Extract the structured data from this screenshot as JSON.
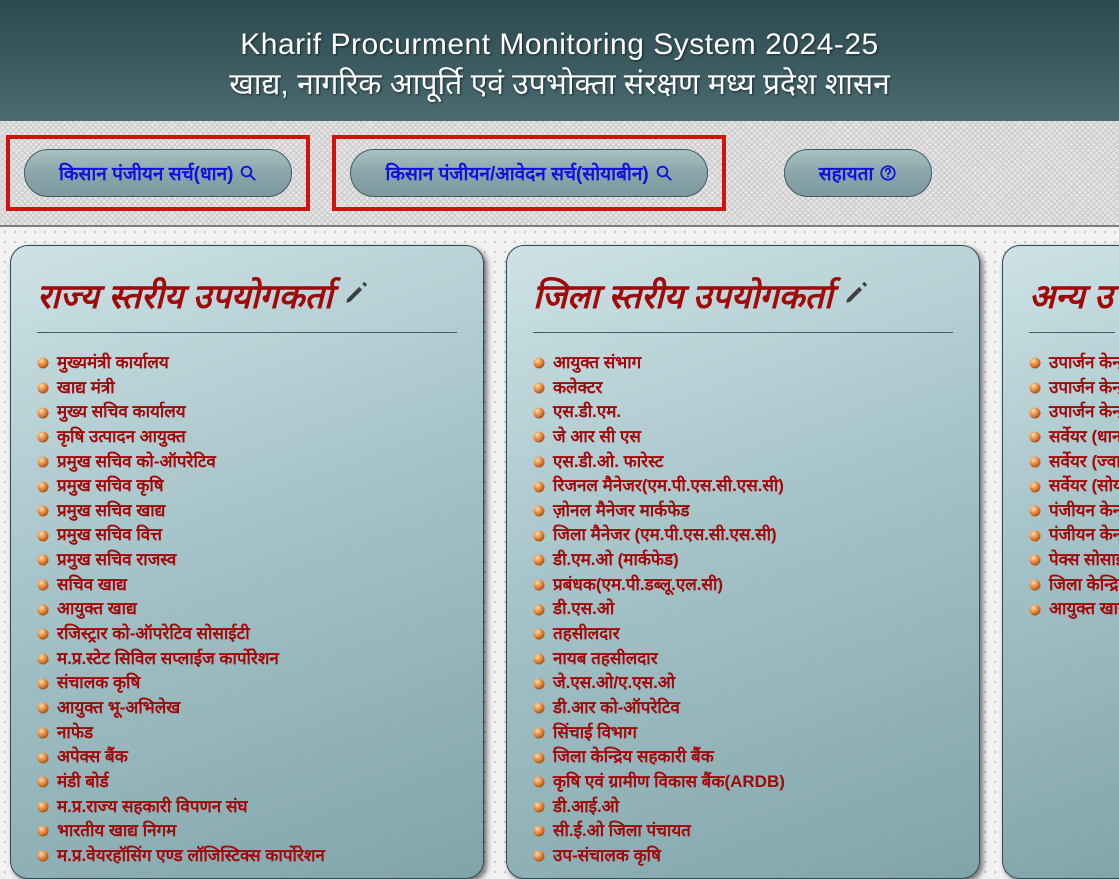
{
  "header": {
    "title_en": "Kharif Procurment Monitoring System 2024-25",
    "title_hi": "खाद्य, नागरिक आपूर्ति एवं उपभोक्ता संरक्षण मध्य प्रदेश शासन"
  },
  "buttons": {
    "search_dhaan": "किसान पंजीयन सर्च(धान)",
    "search_soya": "किसान पंजीयन/आवेदन सर्च(सोयाबीन)",
    "help": "सहायता"
  },
  "panels": [
    {
      "title": "राज्य स्तरीय उपयोगकर्ता",
      "items": [
        "मुख्यमंत्री कार्यालय",
        "खाद्य मंत्री",
        "मुख्य सचिव कार्यालय",
        "कृषि उत्पादन आयुक्त",
        "प्रमुख सचिव को-ऑपरेटिव",
        "प्रमुख सचिव कृषि",
        "प्रमुख सचिव खाद्य",
        "प्रमुख सचिव वित्त",
        "प्रमुख सचिव राजस्व",
        "सचिव खाद्य",
        "आयुक्त खाद्य",
        "रजिस्ट्रार को-ऑपरेटिव सोसाईटी",
        "म.प्र.स्टेट सिविल सप्लाईज कार्पोरेशन",
        "संचालक कृषि",
        "आयुक्त भू-अभिलेख",
        "नाफेड",
        "अपेक्स बैंक",
        "मंडी बोर्ड",
        "म.प्र.राज्य सहकारी विपणन संघ",
        "भारतीय खाद्य निगम",
        "म.प्र.वेयरहॉसिंग एण्ड लॉजिस्टिक्स कार्पोरेशन"
      ]
    },
    {
      "title": "जिला स्तरीय उपयोगकर्ता",
      "items": [
        "आयुक्त संभाग",
        "कलेक्टर",
        "एस.डी.एम.",
        "जे आर सी एस",
        "एस.डी.ओ. फारेस्ट",
        "रिजनल मैनेजर(एम.पी.एस.सी.एस.सी)",
        "ज़ोनल मैनेजर मार्कफेड",
        "जिला मैनेजर (एम.पी.एस.सी.एस.सी)",
        "डी.एम.ओ (मार्कफेड)",
        "प्रबंधक(एम.पी.डब्लू.एल.सी)",
        "डी.एस.ओ",
        "तहसीलदार",
        "नायब तहसीलदार",
        "जे.एस.ओ/ए.एस.ओ",
        "डी.आर को-ऑपरेटिव",
        "सिंचाई विभाग",
        "जिला केन्द्रिय सहकारी बैंक",
        "कृषि एवं ग्रामीण विकास बैंक(ARDB)",
        "डी.आई.ओ",
        "सी.ई.ओ जिला पंचायत",
        "उप-संचालक कृषि"
      ]
    },
    {
      "title": "अन्य उ",
      "items": [
        "उपार्जन केन्द्र",
        "उपार्जन केन्द्र",
        "उपार्जन केन्द्र",
        "सर्वेयर (धान)",
        "सर्वेयर (ज्वार)",
        "सर्वेयर (सोया)",
        "पंजीयन केन्द्र",
        "पंजीयन केन्द्र",
        "पेक्स सोसाइ",
        "जिला केन्द्रिय",
        "आयुक्त खाद्य"
      ]
    }
  ],
  "colors": {
    "header_grad_top": "#2d4a4f",
    "header_grad_bottom": "#4a6b72",
    "accent_red": "#a10909",
    "highlight_border": "#d41111",
    "link_blue": "#1111dd",
    "bullet_fill": "#d87a2b"
  }
}
